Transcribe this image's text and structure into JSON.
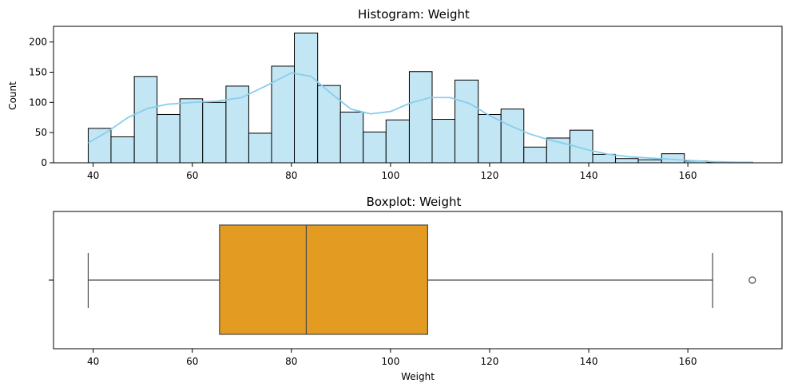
{
  "chart_data": [
    {
      "type": "histogram",
      "title": "Histogram: Weight",
      "xlabel": "",
      "ylabel": "Count",
      "xlim": [
        32,
        179
      ],
      "ylim": [
        0,
        226
      ],
      "xticks": [
        40,
        60,
        80,
        100,
        120,
        140,
        160
      ],
      "yticks": [
        0,
        50,
        100,
        150,
        200
      ],
      "bins": [
        {
          "x0": 39.0,
          "x1": 43.6,
          "count": 57
        },
        {
          "x0": 43.6,
          "x1": 48.3,
          "count": 43
        },
        {
          "x0": 48.3,
          "x1": 52.9,
          "count": 143
        },
        {
          "x0": 52.9,
          "x1": 57.5,
          "count": 80
        },
        {
          "x0": 57.5,
          "x1": 62.1,
          "count": 106
        },
        {
          "x0": 62.1,
          "x1": 66.8,
          "count": 100
        },
        {
          "x0": 66.8,
          "x1": 71.4,
          "count": 127
        },
        {
          "x0": 71.4,
          "x1": 76.0,
          "count": 49
        },
        {
          "x0": 76.0,
          "x1": 80.6,
          "count": 160
        },
        {
          "x0": 80.6,
          "x1": 85.3,
          "count": 215
        },
        {
          "x0": 85.3,
          "x1": 89.9,
          "count": 128
        },
        {
          "x0": 89.9,
          "x1": 94.5,
          "count": 84
        },
        {
          "x0": 94.5,
          "x1": 99.1,
          "count": 51
        },
        {
          "x0": 99.1,
          "x1": 103.8,
          "count": 71
        },
        {
          "x0": 103.8,
          "x1": 108.4,
          "count": 151
        },
        {
          "x0": 108.4,
          "x1": 113.0,
          "count": 72
        },
        {
          "x0": 113.0,
          "x1": 117.7,
          "count": 137
        },
        {
          "x0": 117.7,
          "x1": 122.3,
          "count": 80
        },
        {
          "x0": 122.3,
          "x1": 126.9,
          "count": 89
        },
        {
          "x0": 126.9,
          "x1": 131.5,
          "count": 26
        },
        {
          "x0": 131.5,
          "x1": 136.2,
          "count": 41
        },
        {
          "x0": 136.2,
          "x1": 140.8,
          "count": 54
        },
        {
          "x0": 140.8,
          "x1": 145.4,
          "count": 14
        },
        {
          "x0": 145.4,
          "x1": 150.0,
          "count": 7
        },
        {
          "x0": 150.0,
          "x1": 154.7,
          "count": 5
        },
        {
          "x0": 154.7,
          "x1": 159.3,
          "count": 15
        },
        {
          "x0": 159.3,
          "x1": 163.9,
          "count": 3
        },
        {
          "x0": 163.9,
          "x1": 168.5,
          "count": 1
        },
        {
          "x0": 168.5,
          "x1": 173.0,
          "count": 1
        }
      ],
      "kde": {
        "x": [
          39,
          43,
          47,
          51,
          55,
          60,
          65,
          70,
          75,
          80,
          84,
          88,
          92,
          96,
          100,
          104,
          108,
          112,
          116,
          120,
          124,
          128,
          132,
          136,
          140,
          144,
          148,
          152,
          156,
          160,
          165,
          170,
          173
        ],
        "y": [
          33,
          52,
          75,
          90,
          97,
          100,
          102,
          108,
          128,
          149,
          143,
          115,
          89,
          81,
          85,
          99,
          108,
          108,
          98,
          78,
          62,
          48,
          38,
          30,
          21,
          14,
          10,
          8,
          6,
          4,
          2,
          1,
          1
        ]
      },
      "colors": {
        "bar_fill": "#c3e6f4",
        "bar_edge": "#000000",
        "kde": "#87ceeb"
      }
    },
    {
      "type": "boxplot",
      "title": "Boxplot: Weight",
      "xlabel": "Weight",
      "ylabel": "",
      "xlim": [
        32,
        179
      ],
      "xticks": [
        40,
        60,
        80,
        100,
        120,
        140,
        160
      ],
      "whisker_low": 39,
      "q1": 65.5,
      "median": 83,
      "q3": 107.5,
      "whisker_high": 165,
      "outliers": [
        173
      ],
      "colors": {
        "box_fill": "#e39b22",
        "line": "#4a4a4a"
      }
    }
  ]
}
